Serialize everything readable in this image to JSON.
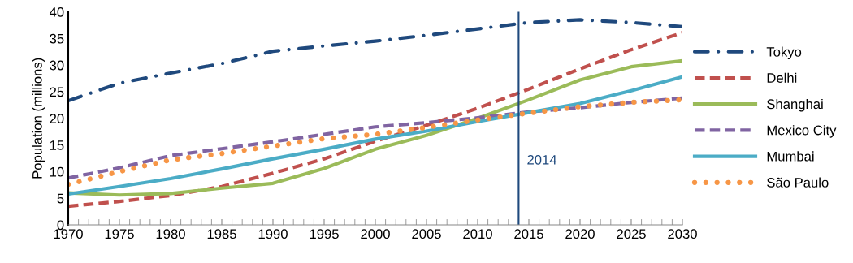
{
  "chart_data": {
    "type": "line",
    "ylabel": "Population (millions)",
    "x": [
      1970,
      1975,
      1980,
      1985,
      1990,
      1995,
      2000,
      2005,
      2010,
      2015,
      2020,
      2025,
      2030
    ],
    "series": [
      {
        "name": "Tokyo",
        "color": "#1f497d",
        "line_style": "dashdot",
        "values": [
          23.3,
          26.6,
          28.5,
          30.3,
          32.6,
          33.6,
          34.5,
          35.6,
          36.8,
          38.0,
          38.5,
          38.0,
          37.2
        ]
      },
      {
        "name": "Delhi",
        "color": "#c0504d",
        "line_style": "dashed",
        "values": [
          3.5,
          4.4,
          5.5,
          7.2,
          9.7,
          12.4,
          15.7,
          18.7,
          21.9,
          25.5,
          29.3,
          32.9,
          36.1
        ]
      },
      {
        "name": "Shanghai",
        "color": "#9bbb59",
        "line_style": "solid",
        "values": [
          6.0,
          5.6,
          5.9,
          6.9,
          7.8,
          10.6,
          14.2,
          16.8,
          20.0,
          23.5,
          27.2,
          29.7,
          30.8
        ]
      },
      {
        "name": "Mexico City",
        "color": "#8064a2",
        "line_style": "dashed",
        "values": [
          8.8,
          10.7,
          13.0,
          14.3,
          15.6,
          17.0,
          18.4,
          19.2,
          20.1,
          21.2,
          22.0,
          23.0,
          23.8
        ]
      },
      {
        "name": "Mumbai",
        "color": "#4bacc6",
        "line_style": "solid",
        "values": [
          5.8,
          7.2,
          8.7,
          10.5,
          12.4,
          14.2,
          16.1,
          17.6,
          19.4,
          21.1,
          22.8,
          25.2,
          27.8
        ]
      },
      {
        "name": "São Paulo",
        "color": "#f79646",
        "line_style": "dotted",
        "values": [
          7.6,
          10.0,
          12.2,
          13.4,
          14.8,
          16.2,
          17.0,
          18.3,
          19.7,
          21.0,
          22.2,
          23.0,
          23.5
        ]
      }
    ],
    "xlim": [
      1970,
      2030
    ],
    "xticks": [
      1970,
      1975,
      1980,
      1985,
      1990,
      1995,
      2000,
      2005,
      2010,
      2015,
      2020,
      2025,
      2030
    ],
    "ylim": [
      0,
      40
    ],
    "yticks": [
      0,
      5,
      10,
      15,
      20,
      25,
      30,
      35,
      40
    ],
    "ref_lines": [
      {
        "axis": "x",
        "value": 2014,
        "label": "2014",
        "color": "#1f497d"
      }
    ],
    "grid": false,
    "legend": "right"
  }
}
